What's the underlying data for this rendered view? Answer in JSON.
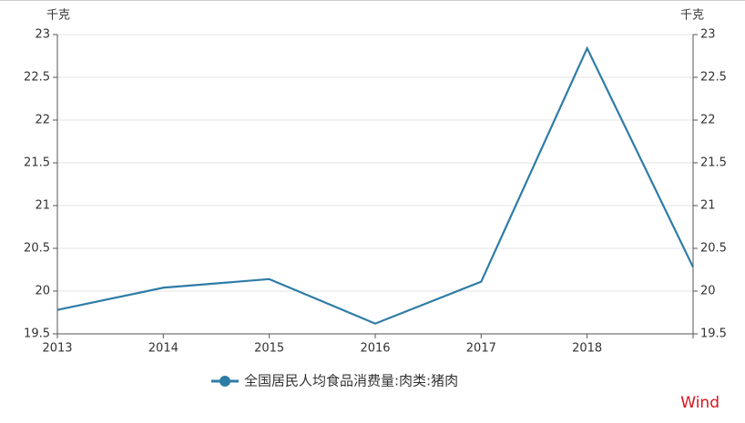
{
  "chart_data": {
    "type": "line",
    "y_unit": "千克",
    "y2_unit": "千克",
    "categories": [
      "2013",
      "2014",
      "2015",
      "2016",
      "2017",
      "2018",
      null
    ],
    "series": [
      {
        "name": "全国居民人均食品消费量:肉类:猪肉",
        "color": "#2e7ca6",
        "values": [
          19.78,
          20.04,
          20.14,
          19.62,
          20.11,
          22.84,
          20.28
        ]
      }
    ],
    "ylim": [
      19.5,
      23
    ],
    "yticks": [
      19.5,
      20,
      20.5,
      21,
      21.5,
      22,
      22.5,
      23
    ],
    "y2lim": [
      19.5,
      23
    ],
    "y2ticks": [
      19.5,
      20,
      20.5,
      21,
      21.5,
      22,
      22.5,
      23
    ],
    "grid": true,
    "legend": "bottom",
    "watermark": "Wind"
  }
}
